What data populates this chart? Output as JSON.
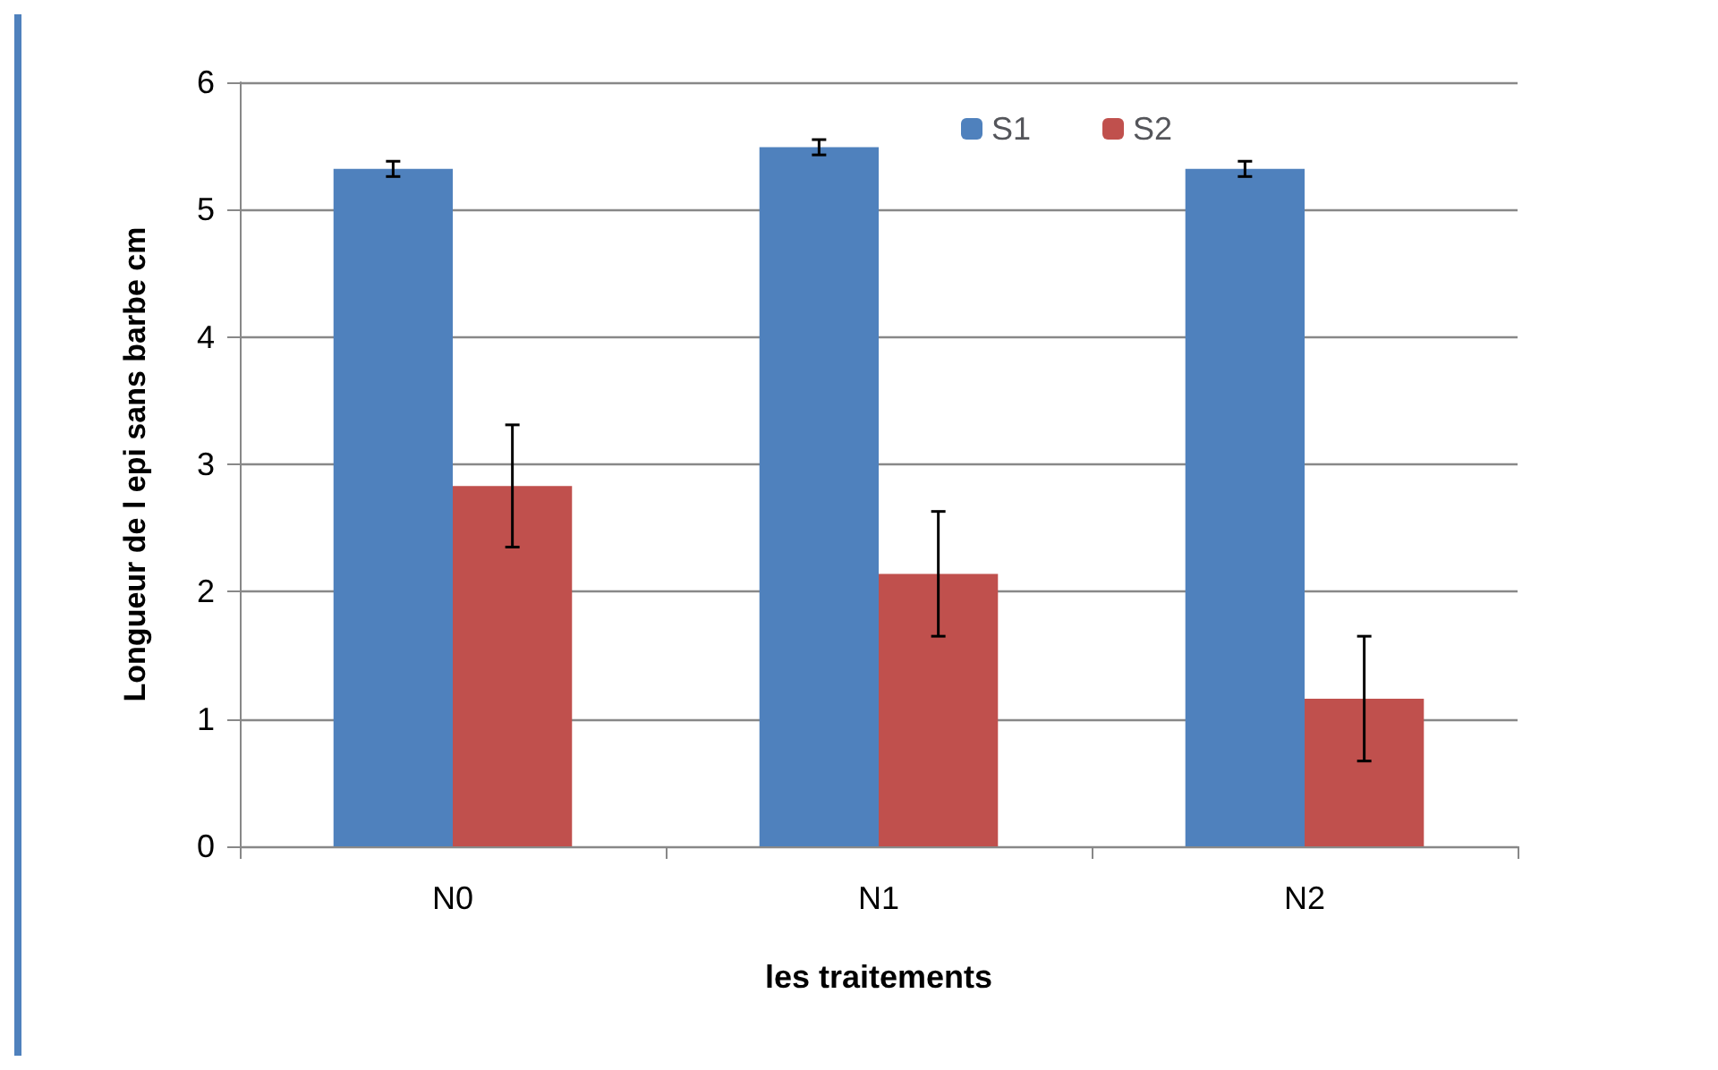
{
  "chart_data": {
    "type": "bar",
    "xlabel": "les traitements",
    "ylabel": "Longueur de l epi sans barbe cm",
    "categories": [
      "N0",
      "N1",
      "N2"
    ],
    "series": [
      {
        "name": "S1",
        "color": "#4f81bd",
        "values": [
          5.32,
          5.49,
          5.32
        ],
        "errors": [
          0.06,
          0.06,
          0.06
        ]
      },
      {
        "name": "S2",
        "color": "#c0504d",
        "values": [
          2.83,
          2.14,
          1.16
        ],
        "errors": [
          0.48,
          0.49,
          0.49
        ]
      }
    ],
    "ylim": [
      0,
      6
    ],
    "yticks": [
      0,
      1,
      2,
      3,
      4,
      5,
      6
    ],
    "grid": "y",
    "legend": "top right"
  }
}
